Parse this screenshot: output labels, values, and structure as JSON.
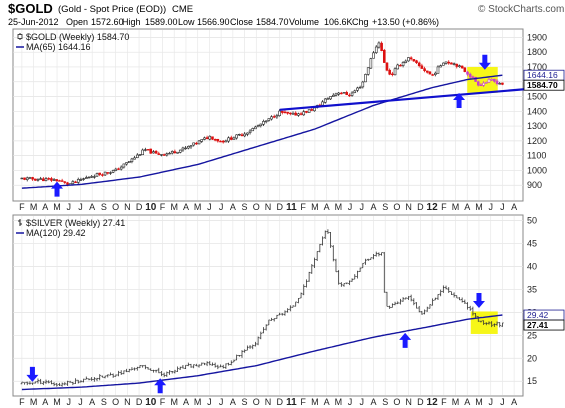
{
  "header": {
    "symbol": "$GOLD",
    "description": "(Gold - Spot Price (EOD))",
    "exchange": "CME",
    "watermark": "© StockCharts.com",
    "date": "25-Jun-2012",
    "open_label": "Open",
    "open_value": "1572.60",
    "high_label": "High",
    "high_value": "1589.00",
    "low_label": "Low",
    "low_value": "1566.90",
    "close_label": "Close",
    "close_value": "1584.70",
    "volume_label": "Volume",
    "volume_value": "106.6K",
    "chg_label": "Chg",
    "chg_value": "+13.50 (+0.86%)"
  },
  "months": [
    "F",
    "M",
    "A",
    "M",
    "J",
    "J",
    "A",
    "S",
    "O",
    "N",
    "D",
    "10",
    "F",
    "M",
    "A",
    "M",
    "J",
    "J",
    "A",
    "S",
    "O",
    "N",
    "D",
    "11",
    "F",
    "M",
    "A",
    "M",
    "J",
    "J",
    "A",
    "S",
    "O",
    "N",
    "D",
    "12",
    "F",
    "M",
    "A",
    "M",
    "J",
    "J",
    "A"
  ],
  "colors": {
    "up": "#222222",
    "down": "#dd1111",
    "ma": "#1515a0",
    "trend": "#1010cc",
    "arrow": "#1a1aff",
    "highlight": "#f5f500",
    "tag_black": "#000000",
    "tag_gray": "#d8d8d8",
    "tag_blue_bg": "#1c1c90",
    "tag_gold_bg": "#d8d8d8",
    "gold_box": "#c840c8"
  },
  "chart_data": [
    {
      "type": "candlestick",
      "title": "$GOLD (Weekly) 1584.70",
      "legend": [
        {
          "text": "$GOLD (Weekly) 1584.70",
          "style": "candles"
        },
        {
          "text": "MA(65) 1644.16",
          "style": "line",
          "color": "#1515a0"
        }
      ],
      "ylim": [
        800,
        1950
      ],
      "yticks": [
        900,
        1000,
        1100,
        1200,
        1300,
        1400,
        1500,
        1600,
        1700,
        1800,
        1900
      ],
      "last_tags": [
        {
          "text": "1644.16",
          "value": 1644.16,
          "kind": "ma"
        },
        {
          "text": "1584.70",
          "value": 1584.7,
          "kind": "price"
        }
      ],
      "price_anchors": [
        {
          "x": 0,
          "v": 945
        },
        {
          "x": 3,
          "v": 935
        },
        {
          "x": 4,
          "v": 905
        },
        {
          "x": 6,
          "v": 965
        },
        {
          "x": 8,
          "v": 1000
        },
        {
          "x": 9.5,
          "v": 1080
        },
        {
          "x": 10.5,
          "v": 1140
        },
        {
          "x": 11.5,
          "v": 1110
        },
        {
          "x": 12.5,
          "v": 1115
        },
        {
          "x": 14,
          "v": 1150
        },
        {
          "x": 15,
          "v": 1190
        },
        {
          "x": 16,
          "v": 1230
        },
        {
          "x": 17,
          "v": 1195
        },
        {
          "x": 19,
          "v": 1250
        },
        {
          "x": 21,
          "v": 1340
        },
        {
          "x": 22,
          "v": 1395
        },
        {
          "x": 23,
          "v": 1375
        },
        {
          "x": 24,
          "v": 1390
        },
        {
          "x": 25,
          "v": 1420
        },
        {
          "x": 26,
          "v": 1485
        },
        {
          "x": 27,
          "v": 1530
        },
        {
          "x": 28,
          "v": 1510
        },
        {
          "x": 29,
          "v": 1580
        },
        {
          "x": 30,
          "v": 1800
        },
        {
          "x": 30.5,
          "v": 1875
        },
        {
          "x": 31,
          "v": 1700
        },
        {
          "x": 31.5,
          "v": 1640
        },
        {
          "x": 32,
          "v": 1700
        },
        {
          "x": 33,
          "v": 1760
        },
        {
          "x": 34,
          "v": 1700
        },
        {
          "x": 35,
          "v": 1640
        },
        {
          "x": 36,
          "v": 1740
        },
        {
          "x": 37,
          "v": 1720
        },
        {
          "x": 38,
          "v": 1660
        },
        {
          "x": 39,
          "v": 1580
        },
        {
          "x": 40,
          "v": 1610
        },
        {
          "x": 41,
          "v": 1585
        }
      ],
      "ma_anchors": [
        {
          "x": 0,
          "v": 880
        },
        {
          "x": 5,
          "v": 905
        },
        {
          "x": 10,
          "v": 955
        },
        {
          "x": 15,
          "v": 1040
        },
        {
          "x": 20,
          "v": 1160
        },
        {
          "x": 25,
          "v": 1280
        },
        {
          "x": 30,
          "v": 1440
        },
        {
          "x": 35,
          "v": 1560
        },
        {
          "x": 38,
          "v": 1615
        },
        {
          "x": 41,
          "v": 1644
        }
      ],
      "trendline": {
        "from": {
          "x": 22,
          "v": 1410
        },
        "to": {
          "x": 43,
          "v": 1550
        }
      },
      "highlight_box": {
        "x0": 38,
        "x1": 40.6,
        "v0": 1525,
        "v1": 1700
      },
      "arrows": [
        {
          "x": 3,
          "v": 870,
          "dir": "up"
        },
        {
          "x": 37.3,
          "v": 1470,
          "dir": "up"
        },
        {
          "x": 39.5,
          "v": 1735,
          "dir": "down"
        }
      ]
    },
    {
      "type": "candlestick",
      "title": "$SILVER (Weekly) 27.41",
      "legend": [
        {
          "text": "$SILVER (Weekly) 27.41",
          "style": "bars"
        },
        {
          "text": "MA(120) 29.42",
          "style": "line",
          "color": "#1515a0"
        }
      ],
      "ylim": [
        12,
        51
      ],
      "yticks": [
        15,
        20,
        25,
        30,
        35,
        40,
        45,
        50
      ],
      "last_tags": [
        {
          "text": "29.42",
          "value": 29.42,
          "kind": "ma"
        },
        {
          "text": "27.41",
          "value": 27.41,
          "kind": "price"
        }
      ],
      "price_anchors": [
        {
          "x": 0,
          "v": 14.5
        },
        {
          "x": 2,
          "v": 15.0
        },
        {
          "x": 3,
          "v": 14.2
        },
        {
          "x": 5,
          "v": 15.2
        },
        {
          "x": 7,
          "v": 16.0
        },
        {
          "x": 9,
          "v": 17.2
        },
        {
          "x": 10,
          "v": 18.3
        },
        {
          "x": 11,
          "v": 17.6
        },
        {
          "x": 12,
          "v": 16.5
        },
        {
          "x": 13,
          "v": 17.2
        },
        {
          "x": 14,
          "v": 18.2
        },
        {
          "x": 16,
          "v": 18.8
        },
        {
          "x": 17,
          "v": 18.0
        },
        {
          "x": 18,
          "v": 19.5
        },
        {
          "x": 19,
          "v": 22.0
        },
        {
          "x": 20,
          "v": 23.5
        },
        {
          "x": 21,
          "v": 28.0
        },
        {
          "x": 22,
          "v": 29.5
        },
        {
          "x": 23,
          "v": 31.0
        },
        {
          "x": 24,
          "v": 35.0
        },
        {
          "x": 25,
          "v": 42.0
        },
        {
          "x": 26,
          "v": 48.5
        },
        {
          "x": 27,
          "v": 36.0
        },
        {
          "x": 28,
          "v": 36.5
        },
        {
          "x": 29,
          "v": 40.5
        },
        {
          "x": 30,
          "v": 42.5
        },
        {
          "x": 30.7,
          "v": 43.0
        },
        {
          "x": 31,
          "v": 31.0
        },
        {
          "x": 32,
          "v": 32.0
        },
        {
          "x": 33,
          "v": 33.5
        },
        {
          "x": 34,
          "v": 29.5
        },
        {
          "x": 35,
          "v": 32.5
        },
        {
          "x": 36,
          "v": 35.5
        },
        {
          "x": 37,
          "v": 33.5
        },
        {
          "x": 38,
          "v": 31.5
        },
        {
          "x": 39,
          "v": 28.0
        },
        {
          "x": 40,
          "v": 27.5
        },
        {
          "x": 41,
          "v": 27.4
        }
      ],
      "ma_anchors": [
        {
          "x": 0,
          "v": 13.2
        },
        {
          "x": 5,
          "v": 13.7
        },
        {
          "x": 10,
          "v": 14.6
        },
        {
          "x": 15,
          "v": 16.2
        },
        {
          "x": 20,
          "v": 18.4
        },
        {
          "x": 25,
          "v": 21.6
        },
        {
          "x": 30,
          "v": 24.6
        },
        {
          "x": 35,
          "v": 27.0
        },
        {
          "x": 38,
          "v": 28.5
        },
        {
          "x": 41,
          "v": 29.42
        }
      ],
      "highlight_box": {
        "x0": 38.3,
        "x1": 40.6,
        "v0": 25.3,
        "v1": 30.2
      },
      "arrows": [
        {
          "x": 0.9,
          "v": 16.6,
          "dir": "down"
        },
        {
          "x": 11.8,
          "v": 13.9,
          "dir": "up"
        },
        {
          "x": 32.7,
          "v": 23.8,
          "dir": "up"
        },
        {
          "x": 39.0,
          "v": 32.7,
          "dir": "down"
        }
      ]
    }
  ]
}
